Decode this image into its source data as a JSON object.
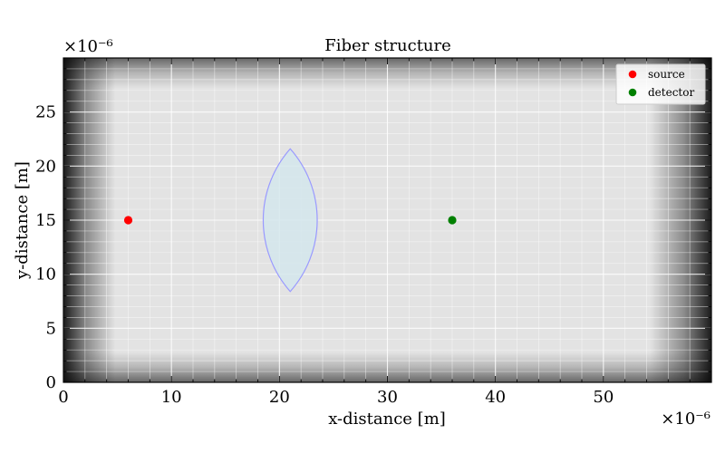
{
  "chart_data": {
    "type": "scatter",
    "title": "Fiber structure",
    "xlabel": "x-distance [m]",
    "ylabel": "y-distance [m]",
    "x_scale_label": "×10⁻⁶",
    "y_scale_label": "×10⁻⁶",
    "xlim": [
      0,
      60
    ],
    "ylim": [
      0,
      30
    ],
    "x_ticks": [
      0,
      10,
      20,
      30,
      40,
      50
    ],
    "y_ticks": [
      0,
      5,
      10,
      15,
      20,
      25
    ],
    "grid": true,
    "legend_position": "top-right",
    "series": [
      {
        "name": "source",
        "color": "#ff0000",
        "points": [
          [
            6,
            15
          ]
        ]
      },
      {
        "name": "detector",
        "color": "#008000",
        "points": [
          [
            36,
            15
          ]
        ]
      }
    ],
    "fiber": {
      "shape": "lens",
      "center": [
        21,
        15
      ],
      "tips_y": [
        8.4,
        21.6
      ],
      "half_width": 2.5,
      "fill": "#d4e6ec",
      "edge": "#9999ff"
    },
    "background": {
      "kind": "absorbing-boundary gradient",
      "interior": "#e3e3e3",
      "edge": "#000000",
      "layers_x": [
        4.8,
        5.7
      ],
      "layers_y": [
        2.8,
        2.8
      ]
    }
  }
}
